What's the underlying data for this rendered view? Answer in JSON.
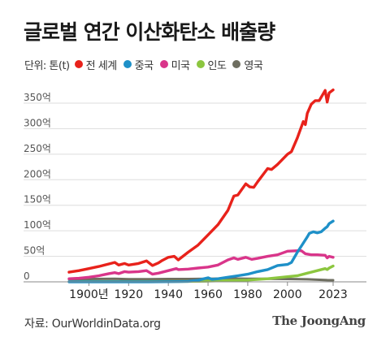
{
  "header": {
    "title": "글로벌 연간 이산화탄소 배출량",
    "unit": "단위: 톤(t)"
  },
  "footer": {
    "source": "자료: OurWorldinData.org",
    "logo": "The JoongAng"
  },
  "colors": {
    "world": "#e8221b",
    "china": "#1e90c8",
    "usa": "#d9358a",
    "india": "#8cc63f",
    "uk": "#6e6e60",
    "grid": "#dddddd",
    "axis": "#888888"
  },
  "chart_data": {
    "type": "line",
    "title": "글로벌 연간 이산화탄소 배출량",
    "unit": "단위: 톤(t)",
    "xlim": [
      1890,
      2023
    ],
    "ylim": [
      0,
      375
    ],
    "x_ticks": [
      {
        "value": 1900,
        "label": "1900년"
      },
      {
        "value": 1920,
        "label": "1920"
      },
      {
        "value": 1940,
        "label": "1940"
      },
      {
        "value": 1960,
        "label": "1960"
      },
      {
        "value": 1980,
        "label": "1980"
      },
      {
        "value": 2000,
        "label": "2000"
      },
      {
        "value": 2023,
        "label": "2023"
      }
    ],
    "y_ticks": [
      {
        "value": 0,
        "label": "0"
      },
      {
        "value": 50,
        "label": "50억"
      },
      {
        "value": 100,
        "label": "100억"
      },
      {
        "value": 150,
        "label": "150억"
      },
      {
        "value": 200,
        "label": "200억"
      },
      {
        "value": 250,
        "label": "250억"
      },
      {
        "value": 300,
        "label": "300억"
      },
      {
        "value": 350,
        "label": "350억"
      }
    ],
    "grid": true,
    "legend_position": "top-left",
    "series": [
      {
        "key": "world",
        "name": "전 세계",
        "color": "#e8221b",
        "points": [
          [
            1890,
            19
          ],
          [
            1895,
            22
          ],
          [
            1900,
            26
          ],
          [
            1905,
            30
          ],
          [
            1910,
            35
          ],
          [
            1913,
            38
          ],
          [
            1915,
            33
          ],
          [
            1918,
            36
          ],
          [
            1920,
            33
          ],
          [
            1925,
            36
          ],
          [
            1929,
            41
          ],
          [
            1932,
            32
          ],
          [
            1935,
            37
          ],
          [
            1937,
            42
          ],
          [
            1940,
            48
          ],
          [
            1943,
            50
          ],
          [
            1945,
            43
          ],
          [
            1950,
            58
          ],
          [
            1955,
            72
          ],
          [
            1960,
            92
          ],
          [
            1965,
            112
          ],
          [
            1970,
            140
          ],
          [
            1973,
            168
          ],
          [
            1975,
            170
          ],
          [
            1979,
            192
          ],
          [
            1981,
            186
          ],
          [
            1983,
            185
          ],
          [
            1985,
            196
          ],
          [
            1990,
            222
          ],
          [
            1992,
            220
          ],
          [
            1995,
            230
          ],
          [
            2000,
            250
          ],
          [
            2002,
            255
          ],
          [
            2005,
            282
          ],
          [
            2008,
            314
          ],
          [
            2009,
            308
          ],
          [
            2010,
            330
          ],
          [
            2012,
            348
          ],
          [
            2014,
            355
          ],
          [
            2016,
            355
          ],
          [
            2019,
            375
          ],
          [
            2020,
            352
          ],
          [
            2021,
            370
          ],
          [
            2023,
            376
          ]
        ]
      },
      {
        "key": "china",
        "name": "중국",
        "color": "#1e90c8",
        "points": [
          [
            1890,
            0
          ],
          [
            1930,
            0
          ],
          [
            1945,
            0.5
          ],
          [
            1950,
            1
          ],
          [
            1955,
            3
          ],
          [
            1958,
            6
          ],
          [
            1960,
            8
          ],
          [
            1962,
            5
          ],
          [
            1965,
            6
          ],
          [
            1970,
            9
          ],
          [
            1975,
            12
          ],
          [
            1980,
            15
          ],
          [
            1985,
            20
          ],
          [
            1990,
            24
          ],
          [
            1995,
            32
          ],
          [
            2000,
            34
          ],
          [
            2002,
            38
          ],
          [
            2005,
            58
          ],
          [
            2007,
            70
          ],
          [
            2010,
            88
          ],
          [
            2011,
            95
          ],
          [
            2013,
            98
          ],
          [
            2015,
            96
          ],
          [
            2017,
            98
          ],
          [
            2019,
            105
          ],
          [
            2020,
            108
          ],
          [
            2021,
            114
          ],
          [
            2023,
            119
          ]
        ]
      },
      {
        "key": "usa",
        "name": "미국",
        "color": "#d9358a",
        "points": [
          [
            1890,
            6
          ],
          [
            1895,
            7
          ],
          [
            1900,
            9
          ],
          [
            1905,
            12
          ],
          [
            1910,
            16
          ],
          [
            1913,
            18
          ],
          [
            1915,
            16
          ],
          [
            1918,
            20
          ],
          [
            1920,
            19
          ],
          [
            1925,
            20
          ],
          [
            1929,
            22
          ],
          [
            1932,
            15
          ],
          [
            1935,
            17
          ],
          [
            1940,
            22
          ],
          [
            1944,
            26
          ],
          [
            1945,
            24
          ],
          [
            1950,
            25
          ],
          [
            1955,
            27
          ],
          [
            1960,
            29
          ],
          [
            1965,
            33
          ],
          [
            1970,
            43
          ],
          [
            1973,
            47
          ],
          [
            1975,
            44
          ],
          [
            1979,
            48
          ],
          [
            1982,
            44
          ],
          [
            1985,
            46
          ],
          [
            1990,
            50
          ],
          [
            1995,
            53
          ],
          [
            2000,
            60
          ],
          [
            2005,
            61
          ],
          [
            2007,
            61
          ],
          [
            2009,
            55
          ],
          [
            2012,
            53
          ],
          [
            2015,
            53
          ],
          [
            2019,
            52
          ],
          [
            2020,
            47
          ],
          [
            2021,
            50
          ],
          [
            2023,
            48
          ]
        ]
      },
      {
        "key": "india",
        "name": "인도",
        "color": "#8cc63f",
        "points": [
          [
            1890,
            0.3
          ],
          [
            1920,
            0.5
          ],
          [
            1950,
            1
          ],
          [
            1960,
            1.5
          ],
          [
            1970,
            2.5
          ],
          [
            1980,
            3.5
          ],
          [
            1990,
            6
          ],
          [
            2000,
            10
          ],
          [
            2005,
            12
          ],
          [
            2010,
            17
          ],
          [
            2015,
            22
          ],
          [
            2019,
            26
          ],
          [
            2020,
            24
          ],
          [
            2021,
            27
          ],
          [
            2023,
            31
          ]
        ]
      },
      {
        "key": "uk",
        "name": "영국",
        "color": "#6e6e60",
        "points": [
          [
            1890,
            5
          ],
          [
            1900,
            5.5
          ],
          [
            1913,
            6
          ],
          [
            1920,
            5.2
          ],
          [
            1930,
            5.3
          ],
          [
            1940,
            5.5
          ],
          [
            1950,
            5.5
          ],
          [
            1960,
            6
          ],
          [
            1970,
            6.6
          ],
          [
            1980,
            6
          ],
          [
            1990,
            6
          ],
          [
            2000,
            5.6
          ],
          [
            2010,
            5
          ],
          [
            2015,
            4.2
          ],
          [
            2020,
            3.3
          ],
          [
            2023,
            3.2
          ]
        ]
      }
    ]
  }
}
